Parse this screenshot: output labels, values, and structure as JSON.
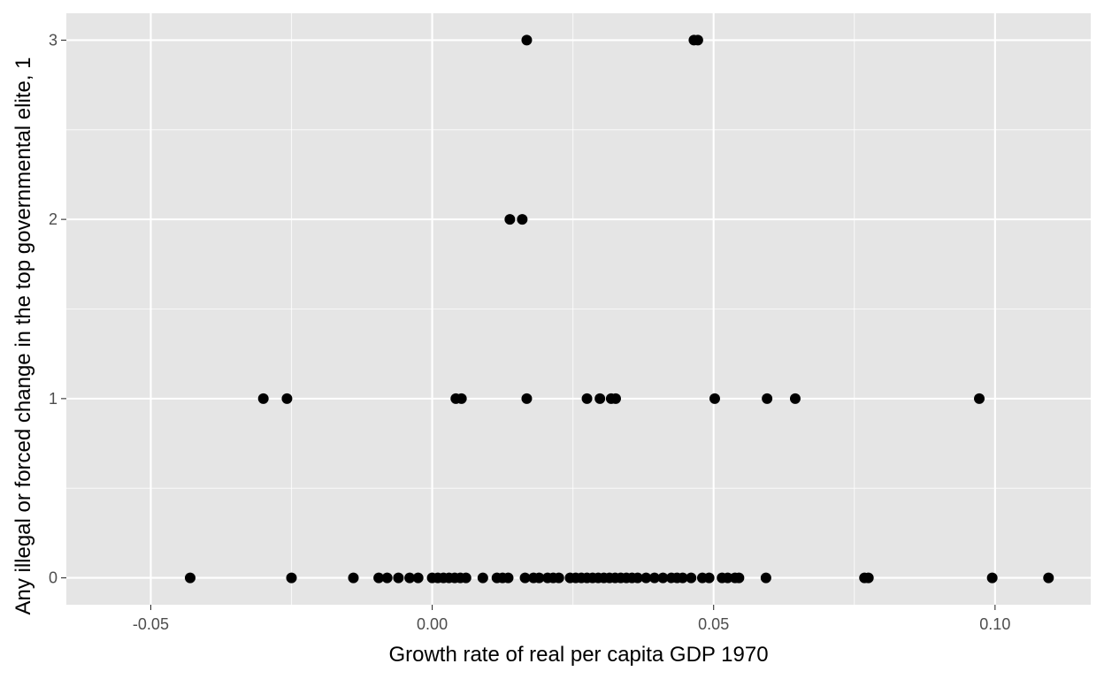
{
  "chart_data": {
    "type": "scatter",
    "title": "",
    "xlabel": "Growth rate of real per capita GDP 1970",
    "ylabel": "Any illegal or forced change in the top governmental elite, 1",
    "xlim": [
      -0.065,
      0.117
    ],
    "ylim": [
      -0.15,
      3.15
    ],
    "x_ticks": [
      {
        "value": -0.05,
        "label": "-0.05"
      },
      {
        "value": 0.0,
        "label": "0.00"
      },
      {
        "value": 0.05,
        "label": "0.05"
      },
      {
        "value": 0.1,
        "label": "0.10"
      }
    ],
    "y_ticks": [
      {
        "value": 0,
        "label": "0"
      },
      {
        "value": 1,
        "label": "1"
      },
      {
        "value": 2,
        "label": "2"
      },
      {
        "value": 3,
        "label": "3"
      }
    ],
    "x_minor": [
      -0.025,
      0.025,
      0.075
    ],
    "y_minor": [
      0.5,
      1.5,
      2.5
    ],
    "grid": true,
    "legend": "none",
    "points": [
      {
        "x": -0.043,
        "y": 0
      },
      {
        "x": -0.025,
        "y": 0
      },
      {
        "x": -0.014,
        "y": 0
      },
      {
        "x": -0.0095,
        "y": 0
      },
      {
        "x": -0.008,
        "y": 0
      },
      {
        "x": -0.006,
        "y": 0
      },
      {
        "x": -0.004,
        "y": 0
      },
      {
        "x": -0.0025,
        "y": 0
      },
      {
        "x": 0.0,
        "y": 0
      },
      {
        "x": 0.001,
        "y": 0
      },
      {
        "x": 0.002,
        "y": 0
      },
      {
        "x": 0.003,
        "y": 0
      },
      {
        "x": 0.004,
        "y": 0
      },
      {
        "x": 0.005,
        "y": 0
      },
      {
        "x": 0.006,
        "y": 0
      },
      {
        "x": 0.009,
        "y": 0
      },
      {
        "x": 0.0115,
        "y": 0
      },
      {
        "x": 0.0125,
        "y": 0
      },
      {
        "x": 0.0135,
        "y": 0
      },
      {
        "x": 0.0165,
        "y": 0
      },
      {
        "x": 0.018,
        "y": 0
      },
      {
        "x": 0.019,
        "y": 0
      },
      {
        "x": 0.0205,
        "y": 0
      },
      {
        "x": 0.0215,
        "y": 0
      },
      {
        "x": 0.0225,
        "y": 0
      },
      {
        "x": 0.0245,
        "y": 0
      },
      {
        "x": 0.0255,
        "y": 0
      },
      {
        "x": 0.0265,
        "y": 0
      },
      {
        "x": 0.0275,
        "y": 0
      },
      {
        "x": 0.0285,
        "y": 0
      },
      {
        "x": 0.0295,
        "y": 0
      },
      {
        "x": 0.0305,
        "y": 0
      },
      {
        "x": 0.0315,
        "y": 0
      },
      {
        "x": 0.0325,
        "y": 0
      },
      {
        "x": 0.0335,
        "y": 0
      },
      {
        "x": 0.0345,
        "y": 0
      },
      {
        "x": 0.0355,
        "y": 0
      },
      {
        "x": 0.0365,
        "y": 0
      },
      {
        "x": 0.038,
        "y": 0
      },
      {
        "x": 0.0395,
        "y": 0
      },
      {
        "x": 0.041,
        "y": 0
      },
      {
        "x": 0.0425,
        "y": 0
      },
      {
        "x": 0.0435,
        "y": 0
      },
      {
        "x": 0.0445,
        "y": 0
      },
      {
        "x": 0.046,
        "y": 0
      },
      {
        "x": 0.048,
        "y": 0
      },
      {
        "x": 0.0492,
        "y": 0
      },
      {
        "x": 0.0515,
        "y": 0
      },
      {
        "x": 0.0525,
        "y": 0
      },
      {
        "x": 0.0538,
        "y": 0
      },
      {
        "x": 0.0545,
        "y": 0
      },
      {
        "x": 0.0593,
        "y": 0
      },
      {
        "x": 0.0768,
        "y": 0
      },
      {
        "x": 0.0775,
        "y": 0
      },
      {
        "x": 0.0995,
        "y": 0
      },
      {
        "x": 0.1095,
        "y": 0
      },
      {
        "x": -0.03,
        "y": 1
      },
      {
        "x": -0.0258,
        "y": 1
      },
      {
        "x": 0.0042,
        "y": 1
      },
      {
        "x": 0.0052,
        "y": 1
      },
      {
        "x": 0.0168,
        "y": 1
      },
      {
        "x": 0.0275,
        "y": 1
      },
      {
        "x": 0.0298,
        "y": 1
      },
      {
        "x": 0.0318,
        "y": 1
      },
      {
        "x": 0.0326,
        "y": 1
      },
      {
        "x": 0.0502,
        "y": 1
      },
      {
        "x": 0.0595,
        "y": 1
      },
      {
        "x": 0.0645,
        "y": 1
      },
      {
        "x": 0.0972,
        "y": 1
      },
      {
        "x": 0.0138,
        "y": 2
      },
      {
        "x": 0.016,
        "y": 2
      },
      {
        "x": 0.0168,
        "y": 3
      },
      {
        "x": 0.0465,
        "y": 3
      },
      {
        "x": 0.0472,
        "y": 3
      }
    ]
  }
}
